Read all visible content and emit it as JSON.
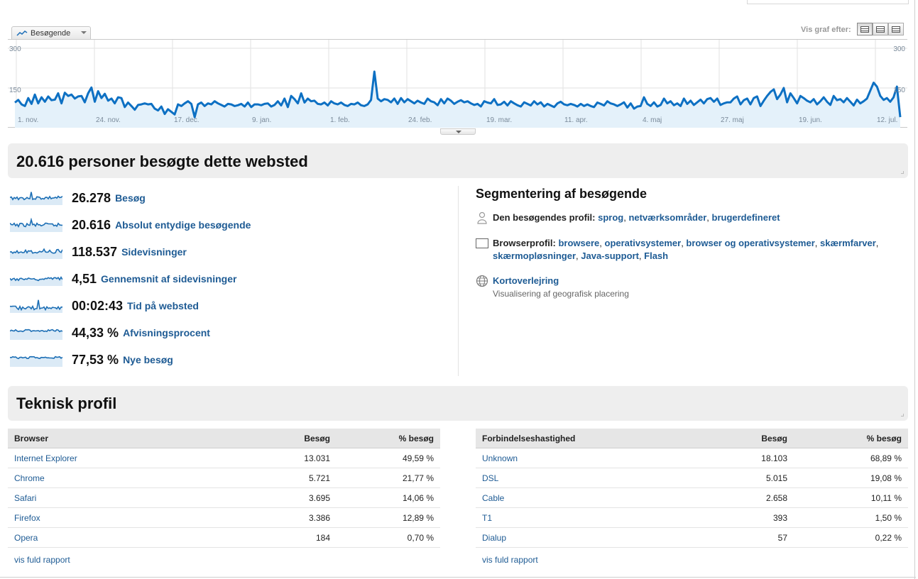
{
  "chart": {
    "metric_label": "Besøgende",
    "view_label": "Vis graf efter:",
    "y_top": "300",
    "y_mid": "150",
    "x_labels": [
      "1. nov.",
      "24. nov.",
      "17. dec.",
      "9. jan.",
      "1. feb.",
      "24. feb.",
      "19. mar.",
      "11. apr.",
      "4. maj",
      "27. maj",
      "19. jun.",
      "12. jul."
    ],
    "line_color": "#0d70c3",
    "fill_color": "#e4f1fa"
  },
  "chart_data": {
    "type": "area",
    "ylim": [
      0,
      300
    ],
    "yticks": [
      150,
      300
    ],
    "x_labels": [
      "1. nov.",
      "24. nov.",
      "17. dec.",
      "9. jan.",
      "1. feb.",
      "24. feb.",
      "19. mar.",
      "11. apr.",
      "4. maj",
      "27. maj",
      "19. jun.",
      "12. jul."
    ],
    "series": [
      {
        "values": [
          95,
          105,
          88,
          82,
          112,
          90,
          125,
          92,
          115,
          98,
          118,
          104,
          106,
          130,
          92,
          132,
          120,
          125,
          110,
          118,
          120,
          96,
          130,
          152,
          98,
          138,
          112,
          128,
          102,
          110,
          92,
          115,
          112,
          78,
          95,
          82,
          68,
          86,
          88,
          92,
          88,
          90,
          72,
          65,
          80,
          52,
          70,
          60,
          50,
          88,
          82,
          92,
          100,
          90,
          40,
          88,
          95,
          82,
          92,
          88,
          100,
          92,
          86,
          80,
          90,
          88,
          82,
          85,
          90,
          80,
          95,
          78,
          88,
          88,
          85,
          90,
          92,
          80,
          86,
          100,
          84,
          110,
          78,
          120,
          108,
          92,
          130,
          95,
          110,
          100,
          102,
          90,
          88,
          95,
          84,
          100,
          92,
          88,
          95,
          86,
          82,
          90,
          88,
          95,
          85,
          82,
          88,
          105,
          212,
          110,
          100,
          108,
          105,
          96,
          110,
          90,
          112,
          96,
          108,
          100,
          92,
          102,
          95,
          90,
          110,
          100,
          96,
          85,
          108,
          92,
          110,
          102,
          90,
          98,
          104,
          96,
          100,
          92,
          86,
          90,
          80,
          100,
          95,
          92,
          108,
          86,
          88,
          98,
          84,
          100,
          92,
          85,
          80,
          96,
          90,
          84,
          100,
          88,
          96,
          80,
          90,
          84,
          78,
          92,
          98,
          88,
          85,
          90,
          86,
          80,
          90,
          82,
          88,
          82,
          78,
          95,
          90,
          84,
          100,
          92,
          88,
          82,
          88,
          96,
          76,
          92,
          72,
          80,
          82,
          115,
          90,
          82,
          96,
          80,
          86,
          110,
          92,
          100,
          85,
          92,
          82,
          110,
          90,
          102,
          86,
          96,
          106,
          92,
          108,
          112,
          98,
          110,
          86,
          92,
          96,
          96,
          110,
          118,
          88,
          104,
          110,
          88,
          112,
          118,
          82,
          102,
          120,
          135,
          145,
          108,
          125,
          150,
          96,
          130,
          112,
          92,
          120,
          112,
          102,
          96,
          108,
          88,
          100,
          115,
          98,
          86,
          120,
          104,
          108,
          96,
          112,
          98,
          84,
          106,
          92,
          100,
          110,
          140,
          170,
          155,
          120,
          105,
          112,
          98,
          115,
          155,
          40
        ]
      }
    ]
  },
  "overview": {
    "title": "20.616 personer besøgte dette websted",
    "metrics": [
      {
        "value": "26.278",
        "label": "Besøg"
      },
      {
        "value": "20.616",
        "label": "Absolut entydige besøgende"
      },
      {
        "value": "118.537",
        "label": "Sidevisninger"
      },
      {
        "value": "4,51",
        "label": "Gennemsnit af sidevisninger"
      },
      {
        "value": "00:02:43",
        "label": "Tid på websted"
      },
      {
        "value": "44,33 %",
        "label": "Afvisningsprocent"
      },
      {
        "value": "77,53 %",
        "label": "Nye besøg"
      }
    ]
  },
  "segmentation": {
    "title": "Segmentering af besøgende",
    "profile_label": "Den besøgendes profil:",
    "profile_links": [
      "sprog",
      "netværksområder",
      "brugerdefineret"
    ],
    "browser_label": "Browserprofil:",
    "browser_links": [
      "browsere",
      "operativsystemer",
      "browser og operativsystemer",
      "skærmfarver",
      "skærmopløsninger",
      "Java-support",
      "Flash"
    ],
    "map_link": "Kortoverlejring",
    "map_desc": "Visualisering af geografisk placering"
  },
  "tech": {
    "title": "Teknisk profil",
    "browser_table": {
      "headers": [
        "Browser",
        "Besøg",
        "% besøg"
      ],
      "rows": [
        [
          "Internet Explorer",
          "13.031",
          "49,59 %"
        ],
        [
          "Chrome",
          "5.721",
          "21,77 %"
        ],
        [
          "Safari",
          "3.695",
          "14,06 %"
        ],
        [
          "Firefox",
          "3.386",
          "12,89 %"
        ],
        [
          "Opera",
          "184",
          "0,70 %"
        ]
      ]
    },
    "connection_table": {
      "headers": [
        "Forbindelseshastighed",
        "Besøg",
        "% besøg"
      ],
      "rows": [
        [
          "Unknown",
          "18.103",
          "68,89 %"
        ],
        [
          "DSL",
          "5.015",
          "19,08 %"
        ],
        [
          "Cable",
          "2.658",
          "10,11 %"
        ],
        [
          "T1",
          "393",
          "1,50 %"
        ],
        [
          "Dialup",
          "57",
          "0,22 %"
        ]
      ]
    },
    "full_report": "vis fuld rapport"
  }
}
